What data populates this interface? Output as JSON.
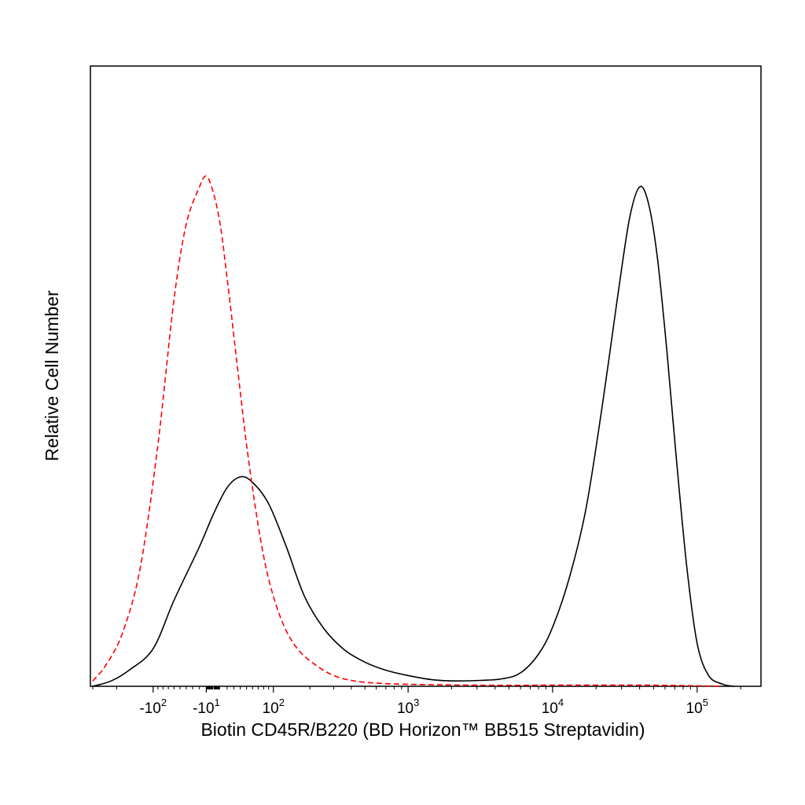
{
  "chart_data": {
    "type": "line",
    "title": "",
    "xlabel": "Biotin CD45R/B220 (BD Horizon™ BB515 Streptavidin)",
    "ylabel": "Relative Cell Number",
    "x_scale": "biexponential",
    "xlim": [
      -300,
      250000
    ],
    "ylim": [
      0,
      1.0
    ],
    "grid": false,
    "legend": "none",
    "x_ticks": [
      {
        "base": "-10",
        "exp": "2",
        "value": -100
      },
      {
        "base": "-10",
        "exp": "1",
        "value": -10
      },
      {
        "base": "10",
        "exp": "2",
        "value": 100
      },
      {
        "base": "10",
        "exp": "3",
        "value": 1000
      },
      {
        "base": "10",
        "exp": "4",
        "value": 10000
      },
      {
        "base": "10",
        "exp": "5",
        "value": 100000
      }
    ],
    "series": [
      {
        "style": "solid",
        "color": "#000000",
        "x": [
          -300,
          -220,
          -160,
          -100,
          -60,
          -20,
          0,
          20,
          40,
          60,
          90,
          130,
          180,
          250,
          350,
          500,
          700,
          1000,
          1500,
          2200,
          3200,
          4500,
          6000,
          8000,
          10000,
          13000,
          17000,
          22000,
          28000,
          34000,
          40000,
          46000,
          53000,
          62000,
          72000,
          85000,
          100000,
          120000,
          150000,
          180000
        ],
        "y": [
          0.0,
          0.01,
          0.03,
          0.07,
          0.16,
          0.26,
          0.32,
          0.37,
          0.39,
          0.38,
          0.34,
          0.26,
          0.17,
          0.11,
          0.07,
          0.045,
          0.03,
          0.02,
          0.012,
          0.01,
          0.011,
          0.014,
          0.025,
          0.06,
          0.11,
          0.2,
          0.33,
          0.52,
          0.72,
          0.87,
          0.93,
          0.9,
          0.8,
          0.62,
          0.42,
          0.22,
          0.08,
          0.02,
          0.004,
          0.0
        ]
      },
      {
        "style": "dashed",
        "color": "#ff0000",
        "x": [
          -300,
          -240,
          -180,
          -130,
          -90,
          -60,
          -40,
          -20,
          -10,
          0,
          10,
          20,
          35,
          50,
          70,
          90,
          120,
          160,
          220,
          300,
          420,
          600,
          900,
          1500,
          3000,
          10000,
          50000,
          150000
        ],
        "y": [
          0.01,
          0.04,
          0.1,
          0.22,
          0.45,
          0.72,
          0.86,
          0.93,
          0.95,
          0.92,
          0.86,
          0.76,
          0.6,
          0.45,
          0.3,
          0.2,
          0.12,
          0.07,
          0.04,
          0.02,
          0.01,
          0.006,
          0.004,
          0.003,
          0.002,
          0.002,
          0.002,
          0.0
        ]
      }
    ]
  }
}
